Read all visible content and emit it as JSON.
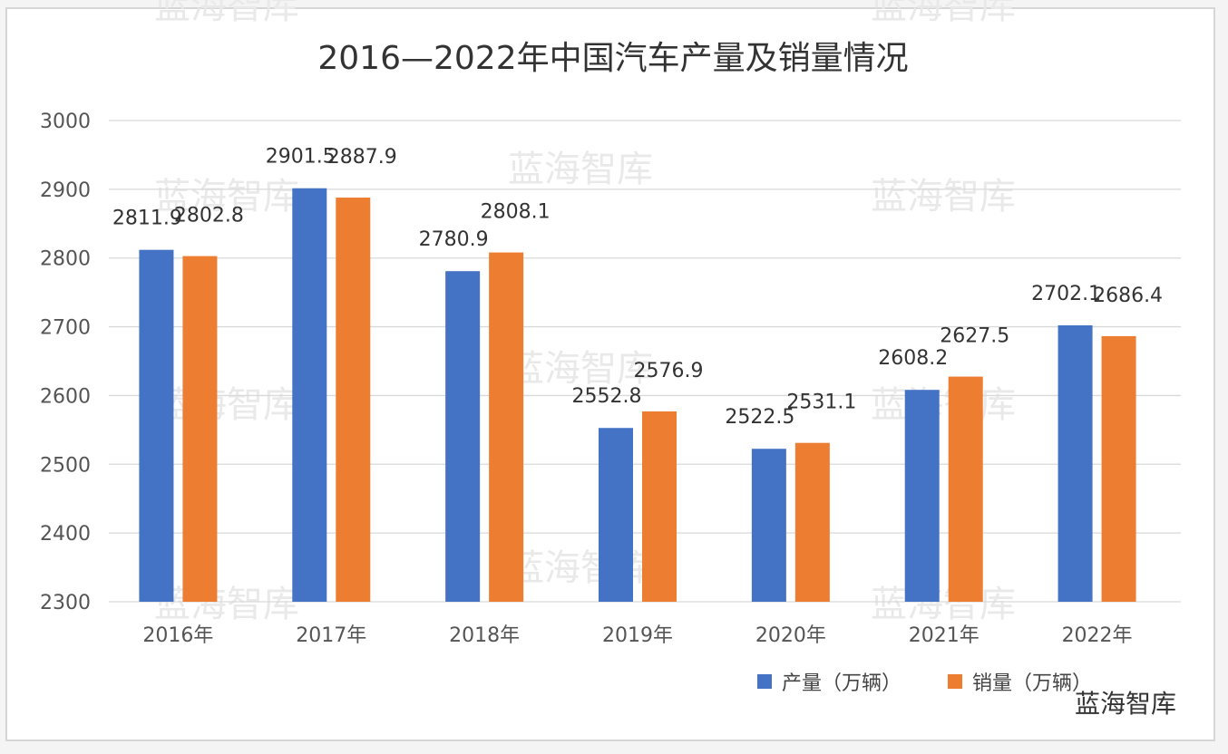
{
  "chart_data": {
    "type": "bar",
    "title": "2016—2022年中国汽车产量及销量情况",
    "categories": [
      "2016年",
      "2017年",
      "2018年",
      "2019年",
      "2020年",
      "2021年",
      "2022年"
    ],
    "series": [
      {
        "name": "产量（万辆）",
        "color": "#4472c4",
        "values": [
          2811.9,
          2901.5,
          2780.9,
          2552.8,
          2522.5,
          2608.2,
          2702.1
        ]
      },
      {
        "name": "销量（万辆）",
        "color": "#ed7d31",
        "values": [
          2802.8,
          2887.9,
          2808.1,
          2576.9,
          2531.1,
          2627.5,
          2686.4
        ]
      }
    ],
    "ylim": [
      2300,
      3000
    ],
    "yticks": [
      "2300",
      "2400",
      "2500",
      "2600",
      "2700",
      "2800",
      "2900",
      "3000"
    ],
    "grid": true,
    "legend": "bottom-right",
    "xlabel": "",
    "ylabel": ""
  },
  "watermark": "蓝海智库"
}
